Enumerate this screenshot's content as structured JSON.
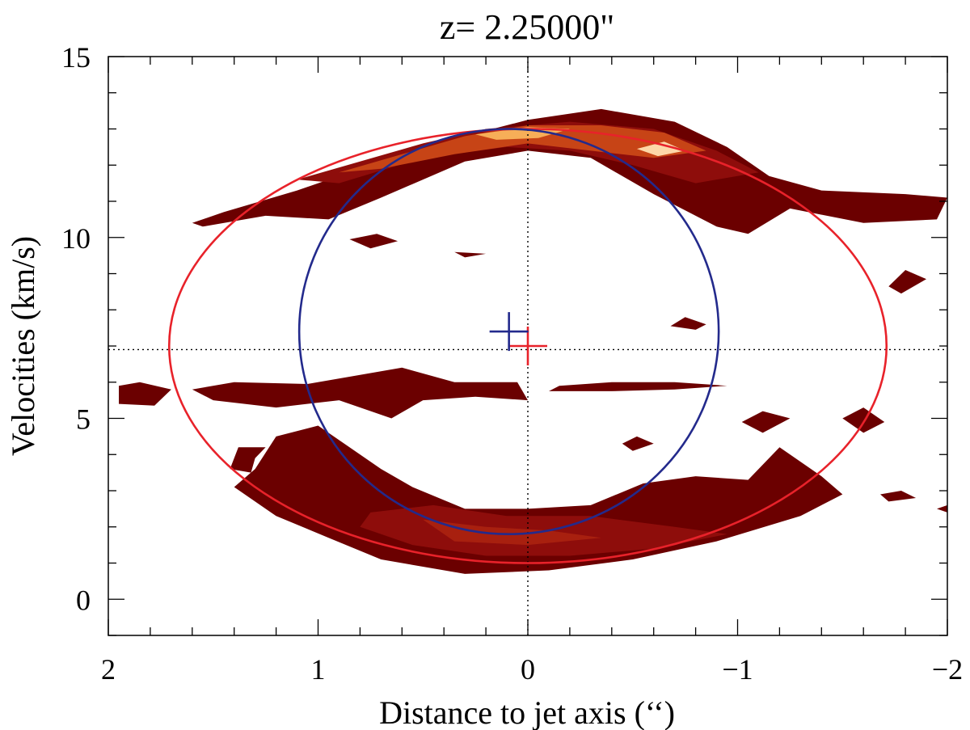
{
  "chart_data": {
    "type": "contour",
    "title": "z= 2.25000\"",
    "xlabel": "Distance to jet axis (‘‘)",
    "ylabel": "Velocities (km/s)",
    "xlim": [
      2,
      -2
    ],
    "ylim": [
      -1,
      15
    ],
    "x_ticks": [
      2,
      1,
      0,
      -1,
      -2
    ],
    "x_tick_labels": [
      "2",
      "1",
      "0",
      "−1",
      "−2"
    ],
    "y_ticks": [
      0,
      5,
      10,
      15
    ],
    "y_tick_labels": [
      "0",
      "5",
      "10",
      "15"
    ],
    "reference_lines": {
      "x": 0,
      "y": 6.9,
      "style": "dotted"
    },
    "fits": [
      {
        "name": "red-ellipse",
        "color": "#e8222a",
        "center": [
          0.0,
          7.0
        ],
        "semi_axis_x": 1.71,
        "semi_axis_y": 6.0
      },
      {
        "name": "blue-ellipse",
        "color": "#232a8c",
        "center": [
          0.09,
          7.4
        ],
        "semi_axis_x": 1.0,
        "semi_axis_y": 5.6
      }
    ],
    "centers": [
      {
        "name": "red-center",
        "color": "#e8222a",
        "x": 0.0,
        "y": 7.0
      },
      {
        "name": "blue-center",
        "color": "#232a8c",
        "x": 0.09,
        "y": 7.4
      }
    ],
    "contour_colors": [
      "#6b0000",
      "#8e0d0b",
      "#a8200f",
      "#c74416",
      "#e5861f",
      "#f7ae58",
      "#fdd7a8",
      "#ffffff"
    ],
    "emission_regions": [
      {
        "name": "upper-arc",
        "level": 1,
        "points": [
          [
            1.6,
            10.4
          ],
          [
            1.45,
            10.7
          ],
          [
            1.1,
            11.3
          ],
          [
            0.8,
            11.9
          ],
          [
            0.6,
            12.3
          ],
          [
            0.3,
            12.8
          ],
          [
            0.0,
            13.25
          ],
          [
            -0.35,
            13.55
          ],
          [
            -0.7,
            13.2
          ],
          [
            -0.95,
            12.5
          ],
          [
            -1.15,
            11.7
          ],
          [
            -1.4,
            11.3
          ],
          [
            -1.8,
            11.2
          ],
          [
            -2.0,
            11.1
          ],
          [
            -1.95,
            10.5
          ],
          [
            -1.6,
            10.4
          ],
          [
            -1.25,
            10.8
          ],
          [
            -1.05,
            10.1
          ],
          [
            -0.9,
            10.3
          ],
          [
            -0.6,
            11.2
          ],
          [
            -0.3,
            12.2
          ],
          [
            0.0,
            12.4
          ],
          [
            0.3,
            12.1
          ],
          [
            0.7,
            11.1
          ],
          [
            0.95,
            10.5
          ],
          [
            1.25,
            10.6
          ],
          [
            1.55,
            10.3
          ]
        ]
      },
      {
        "name": "upper-arc-core",
        "level": 2,
        "points": [
          [
            1.1,
            11.6
          ],
          [
            0.8,
            12.1
          ],
          [
            0.5,
            12.6
          ],
          [
            0.2,
            13.0
          ],
          [
            -0.2,
            13.2
          ],
          [
            -0.6,
            13.0
          ],
          [
            -0.9,
            12.4
          ],
          [
            -1.1,
            11.8
          ],
          [
            -0.8,
            11.5
          ],
          [
            -0.5,
            12.0
          ],
          [
            -0.2,
            12.4
          ],
          [
            0.1,
            12.5
          ],
          [
            0.5,
            12.2
          ],
          [
            0.9,
            11.5
          ]
        ]
      },
      {
        "name": "upper-arc-bright",
        "level": 4,
        "points": [
          [
            0.9,
            11.8
          ],
          [
            0.6,
            12.3
          ],
          [
            0.3,
            12.8
          ],
          [
            0.0,
            13.1
          ],
          [
            -0.35,
            13.1
          ],
          [
            -0.65,
            12.9
          ],
          [
            -0.85,
            12.4
          ],
          [
            -0.6,
            12.2
          ],
          [
            -0.3,
            12.4
          ],
          [
            0.0,
            12.6
          ],
          [
            0.35,
            12.3
          ],
          [
            0.7,
            11.9
          ]
        ]
      },
      {
        "name": "upper-arc-peak",
        "level": 6,
        "points": [
          [
            0.25,
            12.85
          ],
          [
            0.0,
            13.05
          ],
          [
            -0.2,
            13.0
          ],
          [
            -0.05,
            12.75
          ],
          [
            0.15,
            12.7
          ]
        ]
      },
      {
        "name": "upper-arc-peak-2",
        "level": 7,
        "points": [
          [
            -0.65,
            12.65
          ],
          [
            -0.75,
            12.4
          ],
          [
            -0.62,
            12.25
          ],
          [
            -0.52,
            12.45
          ]
        ]
      },
      {
        "name": "middle-band",
        "level": 1,
        "points": [
          [
            1.6,
            5.8
          ],
          [
            1.4,
            6.0
          ],
          [
            1.05,
            5.95
          ],
          [
            0.8,
            6.2
          ],
          [
            0.6,
            6.4
          ],
          [
            0.35,
            6.0
          ],
          [
            0.05,
            6.0
          ],
          [
            0.0,
            5.5
          ],
          [
            0.25,
            5.6
          ],
          [
            0.5,
            5.5
          ],
          [
            0.65,
            5.0
          ],
          [
            0.9,
            5.5
          ],
          [
            1.2,
            5.3
          ],
          [
            1.5,
            5.5
          ]
        ]
      },
      {
        "name": "middle-band-right",
        "level": 1,
        "points": [
          [
            -0.15,
            5.9
          ],
          [
            -0.4,
            6.0
          ],
          [
            -0.7,
            6.0
          ],
          [
            -0.95,
            5.9
          ],
          [
            -0.7,
            5.8
          ],
          [
            -0.4,
            5.75
          ],
          [
            -0.1,
            5.75
          ]
        ]
      },
      {
        "name": "left-blob",
        "level": 1,
        "points": [
          [
            1.95,
            5.9
          ],
          [
            1.85,
            6.0
          ],
          [
            1.7,
            5.8
          ],
          [
            1.78,
            5.35
          ],
          [
            1.95,
            5.4
          ]
        ]
      },
      {
        "name": "lower-arc",
        "level": 1,
        "points": [
          [
            1.2,
            4.5
          ],
          [
            1.0,
            4.8
          ],
          [
            0.85,
            4.2
          ],
          [
            0.7,
            3.6
          ],
          [
            0.55,
            3.1
          ],
          [
            0.3,
            2.5
          ],
          [
            0.0,
            2.5
          ],
          [
            -0.3,
            2.6
          ],
          [
            -0.55,
            3.2
          ],
          [
            -0.8,
            3.4
          ],
          [
            -1.05,
            3.3
          ],
          [
            -1.2,
            4.2
          ],
          [
            -1.4,
            3.4
          ],
          [
            -1.5,
            2.9
          ],
          [
            -1.3,
            2.3
          ],
          [
            -0.9,
            1.6
          ],
          [
            -0.5,
            1.1
          ],
          [
            -0.1,
            0.8
          ],
          [
            0.3,
            0.7
          ],
          [
            0.7,
            1.1
          ],
          [
            0.95,
            1.7
          ],
          [
            1.2,
            2.3
          ],
          [
            1.4,
            3.1
          ],
          [
            1.3,
            3.6
          ]
        ]
      },
      {
        "name": "lower-arc-core",
        "level": 2,
        "points": [
          [
            0.75,
            2.4
          ],
          [
            0.45,
            2.6
          ],
          [
            0.1,
            2.3
          ],
          [
            -0.3,
            2.3
          ],
          [
            -0.7,
            2.0
          ],
          [
            -0.95,
            1.8
          ],
          [
            -0.6,
            1.4
          ],
          [
            -0.2,
            1.2
          ],
          [
            0.2,
            1.2
          ],
          [
            0.55,
            1.5
          ],
          [
            0.8,
            2.0
          ]
        ]
      },
      {
        "name": "lower-arc-bright",
        "level": 3,
        "points": [
          [
            0.5,
            2.2
          ],
          [
            0.2,
            2.0
          ],
          [
            -0.1,
            1.9
          ],
          [
            -0.35,
            1.7
          ],
          [
            0.0,
            1.5
          ],
          [
            0.35,
            1.6
          ]
        ]
      },
      {
        "name": "small-blob-left",
        "level": 1,
        "points": [
          [
            1.3,
            3.9
          ],
          [
            1.25,
            4.2
          ],
          [
            1.38,
            4.2
          ],
          [
            1.42,
            3.6
          ],
          [
            1.32,
            3.5
          ]
        ]
      },
      {
        "name": "small-blob-top",
        "level": 1,
        "points": [
          [
            0.85,
            9.95
          ],
          [
            0.72,
            10.1
          ],
          [
            0.62,
            9.9
          ],
          [
            0.75,
            9.7
          ]
        ]
      },
      {
        "name": "small-blob-a",
        "level": 1,
        "points": [
          [
            -0.85,
            7.6
          ],
          [
            -0.75,
            7.8
          ],
          [
            -0.68,
            7.55
          ],
          [
            -0.8,
            7.45
          ]
        ]
      },
      {
        "name": "small-blob-b",
        "level": 1,
        "points": [
          [
            -1.72,
            8.65
          ],
          [
            -1.8,
            9.1
          ],
          [
            -1.9,
            8.85
          ],
          [
            -1.78,
            8.45
          ]
        ]
      },
      {
        "name": "small-blob-c",
        "level": 1,
        "points": [
          [
            -1.5,
            5.0
          ],
          [
            -1.6,
            5.3
          ],
          [
            -1.7,
            4.9
          ],
          [
            -1.6,
            4.6
          ]
        ]
      },
      {
        "name": "small-blob-d",
        "level": 1,
        "points": [
          [
            -1.02,
            4.9
          ],
          [
            -1.12,
            5.2
          ],
          [
            -1.25,
            5.0
          ],
          [
            -1.12,
            4.6
          ]
        ]
      },
      {
        "name": "small-blob-e",
        "level": 1,
        "points": [
          [
            -0.45,
            4.3
          ],
          [
            -0.52,
            4.5
          ],
          [
            -0.6,
            4.3
          ],
          [
            -0.5,
            4.1
          ]
        ]
      },
      {
        "name": "small-blob-f",
        "level": 1,
        "points": [
          [
            -1.68,
            2.9
          ],
          [
            -1.78,
            3.0
          ],
          [
            -1.85,
            2.8
          ],
          [
            -1.72,
            2.7
          ]
        ]
      },
      {
        "name": "small-blob-g",
        "level": 1,
        "points": [
          [
            0.2,
            9.55
          ],
          [
            0.35,
            9.6
          ],
          [
            0.3,
            9.45
          ]
        ]
      },
      {
        "name": "small-blob-h",
        "level": 1,
        "points": [
          [
            -2.0,
            2.6
          ],
          [
            -1.95,
            2.5
          ],
          [
            -2.0,
            2.4
          ]
        ]
      }
    ]
  }
}
